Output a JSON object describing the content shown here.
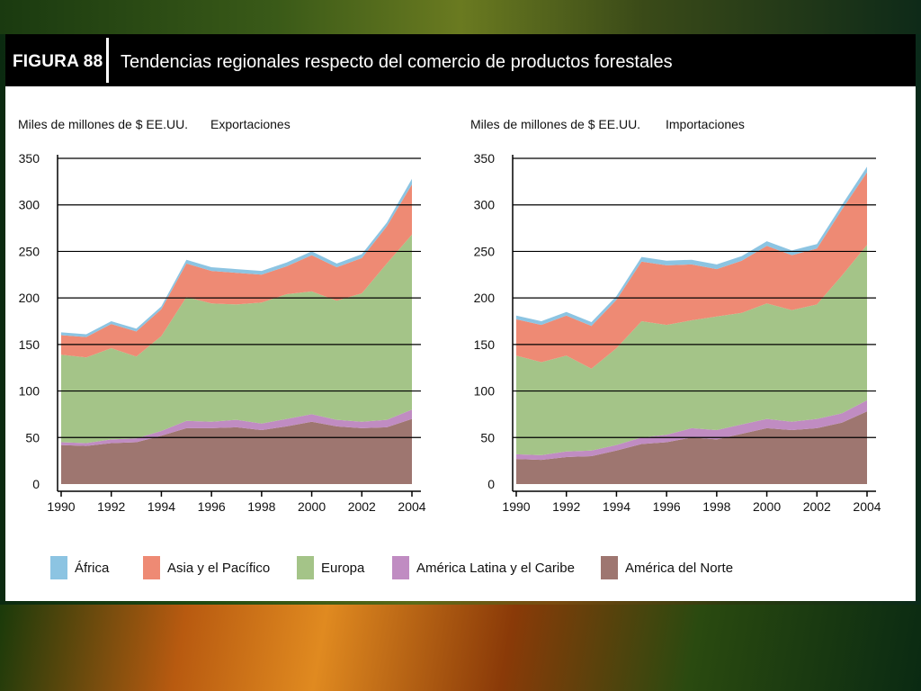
{
  "figure": {
    "label": "FIGURA 88",
    "title": "Tendencias regionales respecto del comercio de productos forestales"
  },
  "colors": {
    "header_bg": "#000000",
    "panel_bg": "#ffffff",
    "africa": "#8cc4e2",
    "asia_pacifico": "#ee8a74",
    "europa": "#a4c488",
    "america_latina": "#c08cc2",
    "america_norte": "#9e7670"
  },
  "legend": [
    {
      "key": "africa",
      "label": "África"
    },
    {
      "key": "asia_pacifico",
      "label": "Asia y el Pacífico"
    },
    {
      "key": "europa",
      "label": "Europa"
    },
    {
      "key": "america_latina",
      "label": "América Latina y el Caribe"
    },
    {
      "key": "america_norte",
      "label": "América del Norte"
    }
  ],
  "chart_data": [
    {
      "type": "area",
      "stacked": true,
      "unit_label": "Miles de millones de $ EE.UU.",
      "title": "Exportaciones",
      "x": [
        1990,
        1991,
        1992,
        1993,
        1994,
        1995,
        1996,
        1997,
        1998,
        1999,
        2000,
        2001,
        2002,
        2003,
        2004
      ],
      "x_tick_labels": [
        "1990",
        "1992",
        "1994",
        "1996",
        "1998",
        "2000",
        "2002",
        "2004"
      ],
      "y_tick_labels": [
        "0",
        "50",
        "100",
        "150",
        "200",
        "250",
        "300",
        "350"
      ],
      "ylim": [
        0,
        350
      ],
      "grid": true,
      "series": [
        {
          "name": "América del Norte",
          "key": "america_norte",
          "values": [
            42,
            41,
            44,
            45,
            52,
            60,
            60,
            61,
            58,
            62,
            67,
            62,
            60,
            61,
            70
          ]
        },
        {
          "name": "América Latina y el Caribe",
          "key": "america_latina",
          "values": [
            3,
            3,
            4,
            4,
            5,
            8,
            7,
            8,
            7,
            8,
            8,
            7,
            7,
            8,
            10
          ]
        },
        {
          "name": "Europa",
          "key": "europa",
          "values": [
            94,
            92,
            98,
            88,
            102,
            133,
            127,
            124,
            130,
            134,
            132,
            128,
            138,
            168,
            188
          ]
        },
        {
          "name": "Asia y el Pacífico",
          "key": "asia_pacifico",
          "values": [
            21,
            22,
            26,
            27,
            29,
            36,
            35,
            34,
            30,
            30,
            39,
            36,
            38,
            40,
            54
          ]
        },
        {
          "name": "África",
          "key": "africa",
          "values": [
            3,
            3,
            3,
            3,
            3,
            4,
            4,
            4,
            4,
            4,
            4,
            4,
            4,
            4,
            6
          ]
        }
      ]
    },
    {
      "type": "area",
      "stacked": true,
      "unit_label": "Miles de millones de $ EE.UU.",
      "title": "Importaciones",
      "x": [
        1990,
        1991,
        1992,
        1993,
        1994,
        1995,
        1996,
        1997,
        1998,
        1999,
        2000,
        2001,
        2002,
        2003,
        2004
      ],
      "x_tick_labels": [
        "1990",
        "1992",
        "1994",
        "1996",
        "1998",
        "2000",
        "2002",
        "2004"
      ],
      "y_tick_labels": [
        "0",
        "50",
        "100",
        "150",
        "200",
        "250",
        "300",
        "350"
      ],
      "ylim": [
        0,
        350
      ],
      "grid": true,
      "series": [
        {
          "name": "América del Norte",
          "key": "america_norte",
          "values": [
            27,
            26,
            29,
            30,
            36,
            43,
            45,
            50,
            48,
            54,
            60,
            58,
            60,
            66,
            78
          ]
        },
        {
          "name": "América Latina y el Caribe",
          "key": "america_latina",
          "values": [
            5,
            5,
            6,
            6,
            6,
            7,
            8,
            10,
            10,
            10,
            10,
            9,
            10,
            10,
            12
          ]
        },
        {
          "name": "Europa",
          "key": "europa",
          "values": [
            106,
            100,
            103,
            88,
            104,
            125,
            118,
            116,
            122,
            120,
            124,
            120,
            123,
            148,
            167
          ]
        },
        {
          "name": "Asia y el Pacífico",
          "key": "asia_pacifico",
          "values": [
            39,
            40,
            43,
            46,
            52,
            64,
            64,
            60,
            51,
            56,
            62,
            59,
            60,
            71,
            78
          ]
        },
        {
          "name": "África",
          "key": "africa",
          "values": [
            4,
            4,
            4,
            4,
            4,
            5,
            5,
            5,
            5,
            5,
            5,
            5,
            5,
            5,
            6
          ]
        }
      ]
    }
  ]
}
